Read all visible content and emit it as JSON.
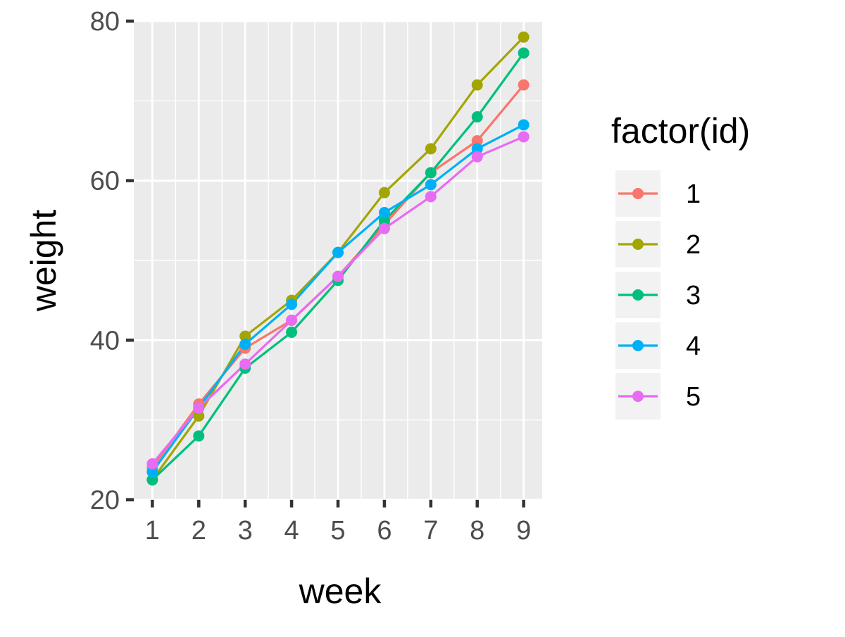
{
  "chart_data": {
    "type": "line",
    "xlabel": "week",
    "ylabel": "weight",
    "x": [
      1,
      2,
      3,
      4,
      5,
      6,
      7,
      8,
      9
    ],
    "xlim": [
      0.6,
      9.4
    ],
    "ylim": [
      20,
      80
    ],
    "x_ticks": [
      1,
      2,
      3,
      4,
      5,
      6,
      7,
      8,
      9
    ],
    "y_ticks": [
      20,
      40,
      60,
      80
    ],
    "grid": true,
    "legend": {
      "title": "factor(id)",
      "position": "right"
    },
    "series": [
      {
        "name": "1",
        "color": "#F8766D",
        "values": [
          24,
          32,
          39,
          42.5,
          48,
          54.5,
          61,
          65,
          72
        ]
      },
      {
        "name": "2",
        "color": "#A3A500",
        "values": [
          22.5,
          30.5,
          40.5,
          45,
          51,
          58.5,
          64,
          72,
          78
        ]
      },
      {
        "name": "3",
        "color": "#00BF7D",
        "values": [
          22.5,
          28,
          36.5,
          41,
          47.5,
          55,
          61,
          68,
          76
        ]
      },
      {
        "name": "4",
        "color": "#00B0F6",
        "values": [
          23.5,
          31.5,
          39.5,
          44.5,
          51,
          56,
          59.5,
          64,
          67
        ]
      },
      {
        "name": "5",
        "color": "#E76BF3",
        "values": [
          24.5,
          31.5,
          37,
          42.5,
          48,
          54,
          58,
          63,
          65.5
        ]
      }
    ]
  }
}
